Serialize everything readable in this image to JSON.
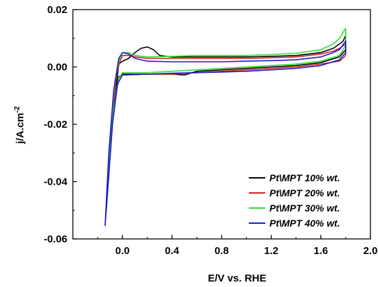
{
  "chart_data": {
    "type": "line",
    "xlabel": "E/V vs. RHE",
    "ylabel": "j/A.cm",
    "ylabel_superscript": "-2",
    "xlim": [
      -0.4,
      2.0
    ],
    "ylim": [
      -0.06,
      0.02
    ],
    "x_ticks": [
      {
        "value": 0.0,
        "label": "0.0"
      },
      {
        "value": 0.4,
        "label": "0.4"
      },
      {
        "value": 0.8,
        "label": "0.8"
      },
      {
        "value": 1.2,
        "label": "1.2"
      },
      {
        "value": 1.6,
        "label": "1.6"
      },
      {
        "value": 2.0,
        "label": "2.0"
      }
    ],
    "y_ticks": [
      {
        "value": 0.02,
        "label": "0.02"
      },
      {
        "value": 0.0,
        "label": "0.00"
      },
      {
        "value": -0.02,
        "label": "-0.02"
      },
      {
        "value": -0.04,
        "label": "-0.04"
      },
      {
        "value": -0.06,
        "label": "-0.06"
      }
    ],
    "grid": false,
    "legend_position": "bottom-right",
    "series": [
      {
        "name": "Pt\\MPT 10% wt.",
        "color": "#000000",
        "x": [
          -0.11,
          -0.07,
          -0.03,
          0.0,
          0.05,
          0.1,
          0.15,
          0.2,
          0.25,
          0.3,
          0.4,
          0.6,
          0.8,
          1.0,
          1.2,
          1.4,
          1.6,
          1.7,
          1.75,
          1.78,
          1.8,
          1.8,
          1.75,
          1.6,
          1.4,
          1.2,
          1.0,
          0.8,
          0.6,
          0.5,
          0.4,
          0.2,
          0.0,
          -0.03,
          -0.06,
          -0.09,
          -0.11
        ],
        "y": [
          -0.034,
          -0.015,
          0.001,
          0.002,
          0.003,
          0.005,
          0.0065,
          0.007,
          0.006,
          0.004,
          0.0035,
          0.0035,
          0.0035,
          0.0035,
          0.0037,
          0.004,
          0.005,
          0.0065,
          0.008,
          0.009,
          0.011,
          0.006,
          0.0035,
          0.0015,
          0.0005,
          0.0,
          -0.0005,
          -0.001,
          -0.0015,
          -0.0028,
          -0.0025,
          -0.0025,
          -0.0025,
          -0.0035,
          -0.01,
          -0.022,
          -0.034
        ]
      },
      {
        "name": "Pt\\MPT 20% wt.",
        "color": "#cc2222",
        "x": [
          -0.12,
          -0.09,
          -0.05,
          -0.02,
          0.0,
          0.05,
          0.1,
          0.2,
          0.4,
          0.6,
          0.8,
          1.0,
          1.2,
          1.4,
          1.6,
          1.7,
          1.75,
          1.8,
          1.8,
          1.75,
          1.6,
          1.4,
          1.2,
          1.0,
          0.8,
          0.6,
          0.4,
          0.2,
          0.0,
          -0.03,
          -0.07,
          -0.1,
          -0.12
        ],
        "y": [
          -0.04,
          -0.02,
          -0.003,
          0.002,
          0.004,
          0.004,
          0.0035,
          0.003,
          0.003,
          0.003,
          0.003,
          0.003,
          0.0032,
          0.0035,
          0.0045,
          0.0055,
          0.0065,
          0.008,
          0.004,
          0.002,
          0.001,
          0.0,
          -0.0005,
          -0.001,
          -0.0015,
          -0.002,
          -0.0025,
          -0.0025,
          -0.0028,
          -0.004,
          -0.012,
          -0.026,
          -0.04
        ]
      },
      {
        "name": "Pt\\MPT 30% wt.",
        "color": "#33dd33",
        "x": [
          -0.13,
          -0.1,
          -0.06,
          -0.03,
          0.0,
          0.05,
          0.1,
          0.2,
          0.4,
          0.6,
          0.8,
          1.0,
          1.2,
          1.4,
          1.6,
          1.7,
          1.75,
          1.8,
          1.8,
          1.75,
          1.6,
          1.4,
          1.2,
          1.0,
          0.8,
          0.6,
          0.4,
          0.2,
          0.0,
          -0.03,
          -0.07,
          -0.1,
          -0.13
        ],
        "y": [
          -0.05,
          -0.025,
          -0.005,
          0.002,
          0.005,
          0.005,
          0.004,
          0.0035,
          0.0037,
          0.004,
          0.004,
          0.004,
          0.0043,
          0.0048,
          0.006,
          0.008,
          0.01,
          0.0135,
          0.0075,
          0.004,
          0.002,
          0.001,
          0.0005,
          0.0,
          -0.0005,
          -0.001,
          -0.0015,
          -0.002,
          -0.002,
          -0.004,
          -0.015,
          -0.03,
          -0.05
        ]
      },
      {
        "name": "Pt\\MPT 40% wt.",
        "color": "#1a1acc",
        "x": [
          -0.14,
          -0.11,
          -0.07,
          -0.03,
          0.0,
          0.05,
          0.1,
          0.2,
          0.4,
          0.6,
          0.8,
          1.0,
          1.2,
          1.4,
          1.6,
          1.7,
          1.75,
          1.8,
          1.8,
          1.75,
          1.6,
          1.4,
          1.2,
          1.0,
          0.8,
          0.6,
          0.4,
          0.2,
          0.0,
          -0.04,
          -0.08,
          -0.11,
          -0.14
        ],
        "y": [
          -0.0555,
          -0.03,
          -0.008,
          0.003,
          0.005,
          0.0045,
          0.003,
          0.002,
          0.0018,
          0.0018,
          0.0018,
          0.002,
          0.0022,
          0.0025,
          0.0035,
          0.005,
          0.006,
          0.009,
          0.005,
          0.0025,
          0.0005,
          -0.0005,
          -0.001,
          -0.0015,
          -0.0018,
          -0.002,
          -0.0022,
          -0.0025,
          -0.0028,
          -0.006,
          -0.02,
          -0.038,
          -0.0555
        ]
      }
    ]
  }
}
